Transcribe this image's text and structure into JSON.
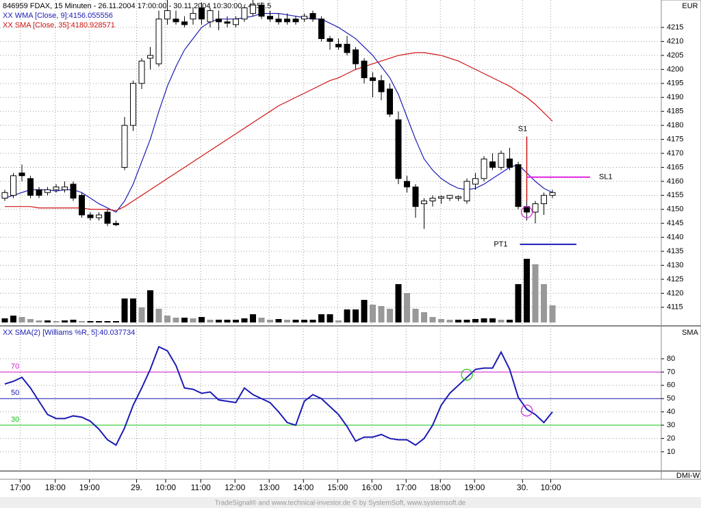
{
  "chart_data": [
    {
      "type": "candlestick",
      "title": "846959 FDAX, 15 Minuten - 26.11.2004 17:00:00 - 30.11.2004 10:30:00 : 4155.5",
      "axis_label": "EUR",
      "xlim": [
        -0.56,
        76.72
      ],
      "ylim": [
        4108.6,
        4224.8
      ],
      "yticks": [
        4115,
        4120,
        4125,
        4130,
        4135,
        4140,
        4145,
        4150,
        4155,
        4160,
        4165,
        4170,
        4175,
        4180,
        4185,
        4190,
        4195,
        4200,
        4205,
        4210,
        4215
      ],
      "xticks": [
        {
          "value": 1.8,
          "label": "17:00"
        },
        {
          "value": 5.9,
          "label": "18:00"
        },
        {
          "value": 9.9,
          "label": "19:00"
        },
        {
          "value": 15.4,
          "label": "29."
        },
        {
          "value": 18.8,
          "label": "10:00"
        },
        {
          "value": 22.9,
          "label": "11:00"
        },
        {
          "value": 26.9,
          "label": "12:00"
        },
        {
          "value": 30.9,
          "label": "13:00"
        },
        {
          "value": 34.9,
          "label": "14:00"
        },
        {
          "value": 38.9,
          "label": "15:00"
        },
        {
          "value": 42.9,
          "label": "16:00"
        },
        {
          "value": 46.9,
          "label": "17:00"
        },
        {
          "value": 50.9,
          "label": "18:00"
        },
        {
          "value": 54.9,
          "label": "19:00"
        },
        {
          "value": 60.5,
          "label": "30."
        },
        {
          "value": 63.8,
          "label": "10:00"
        }
      ],
      "grid": true,
      "ohlc": [
        [
          4154,
          4157,
          4153,
          4156
        ],
        [
          4155,
          4163,
          4154,
          4162
        ],
        [
          4163,
          4166,
          4160,
          4162
        ],
        [
          4161,
          4162,
          4154,
          4155
        ],
        [
          4157,
          4158,
          4154,
          4155
        ],
        [
          4156,
          4158,
          4155,
          4157
        ],
        [
          4157,
          4159,
          4156,
          4158
        ],
        [
          4157,
          4160,
          4156,
          4158
        ],
        [
          4159,
          4160,
          4153,
          4154
        ],
        [
          4155,
          4156,
          4147,
          4148
        ],
        [
          4148,
          4149,
          4146,
          4147
        ],
        [
          4147,
          4149,
          4146,
          4148
        ],
        [
          4149,
          4150,
          4144,
          4145
        ],
        [
          4145,
          4146,
          4144,
          4144.5
        ],
        [
          4165,
          4183,
          4164,
          4180
        ],
        [
          4180,
          4196,
          4178,
          4195
        ],
        [
          4195,
          4204,
          4193,
          4203
        ],
        [
          4204,
          4208,
          4200,
          4205
        ],
        [
          4202,
          4221,
          4201,
          4218
        ],
        [
          4218,
          4225,
          4216,
          4221
        ],
        [
          4218,
          4221,
          4216,
          4217
        ],
        [
          4217,
          4219,
          4215,
          4216
        ],
        [
          4218,
          4222,
          4216,
          4220
        ],
        [
          4222,
          4224,
          4216,
          4218
        ],
        [
          4217,
          4222,
          4215,
          4221
        ],
        [
          4218,
          4221,
          4214,
          4217
        ],
        [
          4217,
          4219,
          4215,
          4216.5
        ],
        [
          4216,
          4219,
          4215,
          4218
        ],
        [
          4218,
          4223,
          4217,
          4222
        ],
        [
          4220,
          4226,
          4219,
          4223
        ],
        [
          4223,
          4224,
          4218,
          4219
        ],
        [
          4219,
          4221,
          4217,
          4218
        ],
        [
          4218,
          4220,
          4216,
          4217
        ],
        [
          4218,
          4220,
          4216,
          4217
        ],
        [
          4218,
          4219,
          4216,
          4217
        ],
        [
          4218,
          4220,
          4217,
          4219
        ],
        [
          4220,
          4221,
          4217,
          4218
        ],
        [
          4218,
          4219,
          4210,
          4211
        ],
        [
          4211,
          4212,
          4207,
          4210
        ],
        [
          4209,
          4211,
          4207,
          4208
        ],
        [
          4209,
          4212,
          4205,
          4206
        ],
        [
          4207,
          4208,
          4200,
          4202
        ],
        [
          4203,
          4204,
          4195,
          4197
        ],
        [
          4197,
          4199,
          4190,
          4196
        ],
        [
          4196,
          4198,
          4189,
          4192
        ],
        [
          4193,
          4195,
          4183,
          4184
        ],
        [
          4182,
          4185,
          4159,
          4161
        ],
        [
          4160,
          4162,
          4156,
          4158
        ],
        [
          4158,
          4159,
          4147,
          4151
        ],
        [
          4152,
          4154,
          4143,
          4153
        ],
        [
          4153,
          4155,
          4151,
          4154
        ],
        [
          4154,
          4155,
          4152,
          4154.5
        ],
        [
          4154,
          4155,
          4153,
          4155
        ],
        [
          4154,
          4155,
          4153,
          4154.5
        ],
        [
          4153,
          4161,
          4152,
          4160
        ],
        [
          4159,
          4163,
          4157,
          4161
        ],
        [
          4161,
          4169,
          4160,
          4168
        ],
        [
          4167,
          4170,
          4164,
          4165
        ],
        [
          4165,
          4171,
          4164,
          4170
        ],
        [
          4168,
          4172,
          4164,
          4165
        ],
        [
          4166,
          4167,
          4150,
          4151
        ],
        [
          4151,
          4155,
          4146,
          4149
        ],
        [
          4149,
          4153,
          4145,
          4152
        ],
        [
          4152,
          4156,
          4148,
          4155
        ],
        [
          4155,
          4157,
          4154,
          4156
        ]
      ],
      "volume": [
        6,
        10,
        8,
        5,
        3,
        3,
        2,
        3,
        4,
        2,
        2,
        2,
        2,
        2,
        35,
        35,
        22,
        47,
        20,
        10,
        7,
        7,
        6,
        8,
        4,
        4,
        4,
        4,
        6,
        12,
        7,
        4,
        5,
        4,
        4,
        4,
        4,
        12,
        12,
        3,
        19,
        19,
        33,
        26,
        24,
        20,
        56,
        43,
        20,
        15,
        8,
        5,
        4,
        4,
        4,
        5,
        6,
        6,
        4,
        4,
        56,
        93,
        85,
        56,
        25
      ],
      "series": [
        {
          "name": "XX WMA [Close, 9]:4156.055556",
          "color": "#1a1ab4",
          "values": [
            4154,
            4155,
            4156,
            4157,
            4157,
            4157,
            4156.5,
            4157,
            4157,
            4156,
            4154,
            4152,
            4150.5,
            4149,
            4153,
            4159,
            4167,
            4175,
            4185,
            4194,
            4201,
            4207,
            4211,
            4215,
            4217,
            4218,
            4218,
            4218,
            4218.5,
            4219,
            4220,
            4220,
            4220,
            4219.5,
            4219,
            4218.5,
            4218,
            4218,
            4216.5,
            4215,
            4213,
            4211,
            4208,
            4205,
            4201,
            4197,
            4191,
            4183,
            4175,
            4168,
            4164,
            4161,
            4159,
            4157.5,
            4157,
            4157.5,
            4159,
            4161,
            4163,
            4165,
            4166,
            4163,
            4160,
            4157.5,
            4156
          ]
        },
        {
          "name": "XX SMA [Close, 35]:4180.928571",
          "color": "#d01010",
          "values": [
            4151,
            4151,
            4151,
            4151,
            4150.5,
            4150.5,
            4150.5,
            4150.5,
            4150.5,
            4150.5,
            4150,
            4150,
            4150,
            4149.5,
            4151,
            4153,
            4155,
            4157,
            4159,
            4161,
            4163,
            4165,
            4167,
            4169,
            4171,
            4173,
            4175,
            4177,
            4179,
            4181,
            4183,
            4185,
            4187,
            4188.5,
            4190,
            4191.5,
            4193,
            4194.5,
            4196,
            4197,
            4198.5,
            4200,
            4201,
            4202,
            4203,
            4204,
            4205,
            4205.5,
            4206,
            4206,
            4205.5,
            4205,
            4204,
            4203,
            4201.5,
            4200,
            4198.5,
            4197,
            4195.5,
            4194,
            4192,
            4190,
            4187.5,
            4184.5,
            4181.5
          ]
        }
      ],
      "signal": {
        "label": "S1",
        "x": 61,
        "values": [
          4176,
          4153
        ],
        "color": "#d01010"
      },
      "levels": [
        {
          "label": "SL1",
          "value": 4161.5,
          "x": [
            61,
            68.4
          ],
          "color": "#e020e0"
        },
        {
          "label": "PT1",
          "value": 4137.5,
          "x": [
            60.2,
            66.8
          ],
          "color": "#1a1ab4"
        }
      ],
      "markers": [
        {
          "x": 61,
          "value": 4149,
          "color": "#d020d0"
        }
      ]
    },
    {
      "type": "line",
      "title": "XX SMA(2) [Williams %R, 5]:40.037734",
      "axis_label": "SMA",
      "xlim": [
        -0.56,
        76.72
      ],
      "ylim": [
        -4.5,
        103.7
      ],
      "yticks": [
        10,
        20,
        30,
        40,
        50,
        60,
        70,
        80
      ],
      "grid": true,
      "series": [
        {
          "name": "XX SMA(2) [Williams %R, 5]:40.037734",
          "color": "#1a1ab4",
          "values": [
            61,
            63,
            66,
            58,
            48,
            38,
            35,
            35,
            37,
            36,
            33,
            27,
            19,
            15,
            28,
            45,
            58,
            72,
            89,
            86,
            75,
            58,
            57,
            54,
            55,
            49,
            48,
            47,
            58,
            53,
            50,
            47,
            40,
            32,
            30,
            48,
            53,
            50,
            44,
            38,
            29,
            18,
            21,
            21,
            23,
            20,
            19,
            19,
            15,
            20,
            30,
            45,
            54,
            60,
            66,
            72,
            73,
            73,
            85,
            72,
            51,
            42,
            38,
            32,
            40
          ]
        }
      ],
      "levels": [
        {
          "value": 70,
          "color": "#d020d0"
        },
        {
          "value": 50,
          "color": "#1a1ab4"
        },
        {
          "value": 30,
          "color": "#10c010"
        }
      ],
      "markers": [
        {
          "x": 54,
          "value": 68,
          "color": "#10c010"
        },
        {
          "x": 61,
          "value": 41,
          "color": "#d020d0"
        }
      ],
      "subpanel_label": "DMI-W"
    }
  ],
  "footer": "TradeSignal® and www.technical-investor.de © by SystemSoft, www.systemsoft.de"
}
